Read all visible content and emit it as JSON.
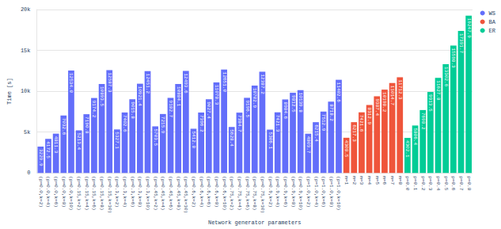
{
  "chart_data": {
    "type": "bar",
    "x_label": "Network generator parameters",
    "y_label": "Time [s]",
    "categories": [
      "(p=0.0,k=2)",
      "(p=0.0,k=4)",
      "(p=0.0,k=6)",
      "(p=0.0,k=8)",
      "(p=0.0,k=10)",
      "(p=0.15,k=2)",
      "(p=0.15,k=4)",
      "(p=0.15,k=6)",
      "(p=0.15,k=8)",
      "(p=0.15,k=10)",
      "(p=0.3,k=2)",
      "(p=0.3,k=4)",
      "(p=0.3,k=6)",
      "(p=0.3,k=8)",
      "(p=0.3,k=10)",
      "(p=0.45,k=2)",
      "(p=0.45,k=4)",
      "(p=0.45,k=6)",
      "(p=0.45,k=8)",
      "(p=0.45,k=10)",
      "(p=0.6,k=2)",
      "(p=0.6,k=4)",
      "(p=0.6,k=6)",
      "(p=0.6,k=8)",
      "(p=0.6,k=10)",
      "(p=0.75,k=2)",
      "(p=0.75,k=4)",
      "(p=0.75,k=6)",
      "(p=0.75,k=8)",
      "(p=0.75,k=10)",
      "(p=0.9,k=2)",
      "(p=0.9,k=4)",
      "(p=0.9,k=6)",
      "(p=0.9,k=8)",
      "(p=0.9,k=10)",
      "(p=1.0,k=2)",
      "(p=1.0,k=4)",
      "(p=1.0,k=6)",
      "(p=1.0,k=8)",
      "(p=1.0,k=10)",
      "m=1",
      "m=2",
      "m=3",
      "m=4",
      "m=5",
      "m=6",
      "m=7",
      "m=8",
      "p=0.0",
      "p=0.1",
      "p=0.2",
      "p=0.3",
      "p=0.4",
      "p=0.5",
      "p=0.6",
      "p=0.7",
      "p=0.8"
    ],
    "series": [
      {
        "name": "WS",
        "color": "#636efa",
        "values": [
          3229.9,
          4172.5,
          4811.3,
          7032.6,
          12534.0,
          5213.4,
          7190.8,
          9174.2,
          10893.5,
          12587.3,
          5327.1,
          7402.6,
          9015.8,
          10921.4,
          12451.2,
          5703.5,
          7215.9,
          9182.7,
          10884.1,
          12493.6,
          5412.8,
          7396.2,
          9027.4,
          11078.3,
          12651.0,
          5628.4,
          7384.7,
          9196.5,
          10702.9,
          12387.2,
          5306.1,
          7421.3,
          8984.6,
          9812.5,
          10139.8,
          4803.7,
          6215.4,
          7512.9,
          8718.2,
          11402.6,
          null,
          null,
          null,
          null,
          null,
          null,
          null,
          null,
          null,
          null,
          null,
          null,
          null,
          null,
          null,
          null,
          null
        ],
        "value_labels": [
          "3229.9",
          "4172.5",
          "4811.3",
          "7032.6",
          "12534.0",
          "5213.4",
          "7190.8",
          "9174.2",
          "10893.5",
          "12587.3",
          "5327.1",
          "7402.6",
          "9015.8",
          "10921.4",
          "12451.2",
          "5703.5",
          "7215.9",
          "9182.7",
          "10884.1",
          "12493.6",
          "5412.8",
          "7396.2",
          "9027.4",
          "11078.3",
          "12651.0",
          "5628.4",
          "7384.7",
          "9196.5",
          "10702.9",
          "12387.2",
          "5306.1",
          "7421.3",
          "8984.6",
          "9812.5",
          "10139.8",
          "4803.7",
          "6215.4",
          "7512.9",
          "8718.2",
          "11402.6",
          null,
          null,
          null,
          null,
          null,
          null,
          null,
          null,
          null,
          null,
          null,
          null,
          null,
          null,
          null,
          null,
          null
        ]
      },
      {
        "name": "BA",
        "color": "#ef553b",
        "values": [
          null,
          null,
          null,
          null,
          null,
          null,
          null,
          null,
          null,
          null,
          null,
          null,
          null,
          null,
          null,
          null,
          null,
          null,
          null,
          null,
          null,
          null,
          null,
          null,
          null,
          null,
          null,
          null,
          null,
          null,
          null,
          null,
          null,
          null,
          null,
          null,
          null,
          null,
          null,
          null,
          4308.5,
          6217.3,
          7421.6,
          8312.9,
          9387.4,
          10198.2,
          11014.7,
          11712.3,
          null,
          null,
          null,
          null,
          null,
          null,
          null,
          null,
          null
        ]
      },
      {
        "name": "ER",
        "color": "#00cc96",
        "values": [
          null,
          null,
          null,
          null,
          null,
          null,
          null,
          null,
          null,
          null,
          null,
          null,
          null,
          null,
          null,
          null,
          null,
          null,
          null,
          null,
          null,
          null,
          null,
          null,
          null,
          null,
          null,
          null,
          null,
          null,
          null,
          null,
          null,
          null,
          null,
          null,
          null,
          null,
          null,
          null,
          null,
          null,
          null,
          null,
          null,
          null,
          null,
          null,
          4302.1,
          5806.4,
          7698.2,
          9913.5,
          11627.8,
          13302.6,
          15598.3,
          17391.7,
          19247.9
        ]
      }
    ],
    "ylim": [
      0,
      20000
    ],
    "yticks": [
      0,
      {
        "value": 5000,
        "label": "5k"
      },
      {
        "value": 10000,
        "label": "10k"
      },
      {
        "value": 15000,
        "label": "15k"
      },
      {
        "value": 20000,
        "label": "20k"
      }
    ],
    "grid": true,
    "legend": "top-right",
    "data_labels": true
  }
}
